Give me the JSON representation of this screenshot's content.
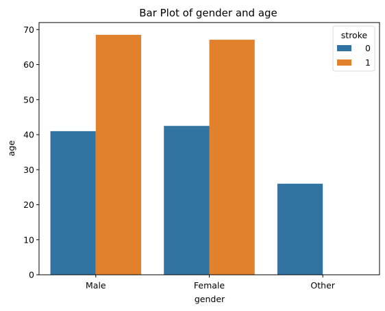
{
  "chart_data": {
    "type": "bar",
    "title": "Bar Plot of gender and age",
    "xlabel": "gender",
    "ylabel": "age",
    "categories": [
      "Male",
      "Female",
      "Other"
    ],
    "ylim": [
      0,
      72
    ],
    "yticks": [
      0,
      10,
      20,
      30,
      40,
      50,
      60,
      70
    ],
    "grid": false,
    "legend": {
      "title": "stroke",
      "placement": "top-right"
    },
    "series": [
      {
        "name": "0",
        "color": "#3274a1",
        "values": [
          41.0,
          42.5,
          26.0
        ]
      },
      {
        "name": "1",
        "color": "#e1812c",
        "values": [
          68.5,
          67.1,
          null
        ]
      }
    ]
  }
}
